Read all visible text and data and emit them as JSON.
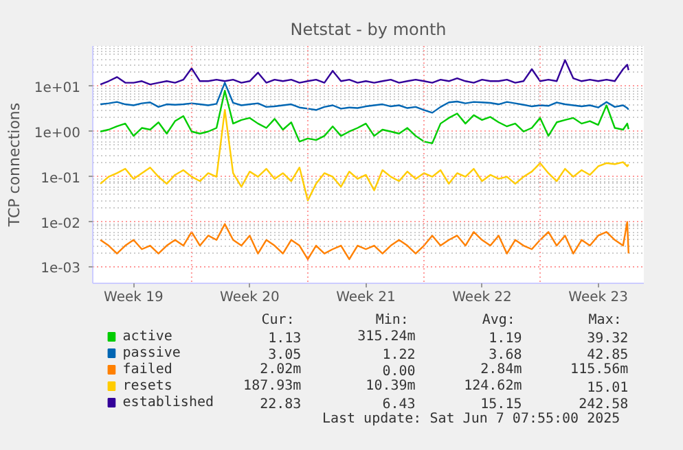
{
  "chart_data": {
    "type": "line",
    "title": "Netstat - by month",
    "ylabel": "TCP connections",
    "log": true,
    "grid": true,
    "legend": "bottom",
    "xlim": [
      "2025-05-06T01:00",
      "2025-06-08T06:00"
    ],
    "ylim": [
      0.00044,
      78
    ],
    "yticks": [
      {
        "value": 0.001,
        "label": "1e-03"
      },
      {
        "value": 0.01,
        "label": "1e-02"
      },
      {
        "value": 0.1,
        "label": "1e-01"
      },
      {
        "value": 1,
        "label": "1e+00"
      },
      {
        "value": 10,
        "label": "1e+01"
      }
    ],
    "xticks": [
      {
        "value": "2025-05-08T12:00",
        "label": "Week 19"
      },
      {
        "value": "2025-05-12T00:00",
        "label": null
      },
      {
        "value": "2025-05-15T12:00",
        "label": "Week 20"
      },
      {
        "value": "2025-05-19T00:00",
        "label": null
      },
      {
        "value": "2025-05-22T12:00",
        "label": "Week 21"
      },
      {
        "value": "2025-05-26T00:00",
        "label": null
      },
      {
        "value": "2025-05-29T12:00",
        "label": "Week 22"
      },
      {
        "value": "2025-06-02T00:00",
        "label": null
      },
      {
        "value": "2025-06-05T12:00",
        "label": "Week 23"
      }
    ],
    "x": [
      "2025-05-06T12:00",
      "2025-05-07T00:00",
      "2025-05-07T12:00",
      "2025-05-08T00:00",
      "2025-05-08T12:00",
      "2025-05-09T00:00",
      "2025-05-09T12:00",
      "2025-05-10T00:00",
      "2025-05-10T12:00",
      "2025-05-11T00:00",
      "2025-05-11T12:00",
      "2025-05-12T00:00",
      "2025-05-12T12:00",
      "2025-05-13T00:00",
      "2025-05-13T12:00",
      "2025-05-14T00:00",
      "2025-05-14T12:00",
      "2025-05-15T00:00",
      "2025-05-15T12:00",
      "2025-05-16T00:00",
      "2025-05-16T12:00",
      "2025-05-17T00:00",
      "2025-05-17T12:00",
      "2025-05-18T00:00",
      "2025-05-18T12:00",
      "2025-05-19T00:00",
      "2025-05-19T12:00",
      "2025-05-20T00:00",
      "2025-05-20T12:00",
      "2025-05-21T00:00",
      "2025-05-21T12:00",
      "2025-05-22T00:00",
      "2025-05-22T12:00",
      "2025-05-23T00:00",
      "2025-05-23T12:00",
      "2025-05-24T00:00",
      "2025-05-24T12:00",
      "2025-05-25T00:00",
      "2025-05-25T12:00",
      "2025-05-26T00:00",
      "2025-05-26T12:00",
      "2025-05-27T00:00",
      "2025-05-27T12:00",
      "2025-05-28T00:00",
      "2025-05-28T12:00",
      "2025-05-29T00:00",
      "2025-05-29T12:00",
      "2025-05-30T00:00",
      "2025-05-30T12:00",
      "2025-05-31T00:00",
      "2025-05-31T12:00",
      "2025-06-01T00:00",
      "2025-06-01T12:00",
      "2025-06-02T00:00",
      "2025-06-02T12:00",
      "2025-06-03T00:00",
      "2025-06-03T12:00",
      "2025-06-04T00:00",
      "2025-06-04T12:00",
      "2025-06-05T00:00",
      "2025-06-05T12:00",
      "2025-06-06T00:00",
      "2025-06-06T12:00",
      "2025-06-07T00:00",
      "2025-06-07T06:00",
      "2025-06-07T07:55"
    ],
    "series": [
      {
        "name": "active",
        "color": "#00cc00",
        "values": [
          1,
          1.1,
          1.3,
          1.5,
          0.8,
          1.2,
          1.1,
          1.6,
          0.9,
          1.7,
          2.2,
          1,
          0.9,
          1,
          1.2,
          8,
          1.5,
          1.8,
          2,
          1.5,
          1.2,
          1.9,
          1.1,
          1.6,
          0.6,
          0.7,
          0.65,
          0.8,
          1.3,
          0.8,
          1,
          1.2,
          1.5,
          0.8,
          1.1,
          1,
          0.9,
          1.2,
          0.8,
          0.6,
          0.55,
          1.5,
          2,
          2.5,
          1.5,
          2.3,
          1.8,
          2.1,
          1.6,
          1.3,
          1.5,
          1,
          1.2,
          2,
          0.8,
          1.6,
          1.8,
          2,
          1.5,
          1.7,
          1.4,
          3.8,
          1.2,
          1.1,
          1.5,
          1.13
        ]
      },
      {
        "name": "passive",
        "color": "#0066b3",
        "values": [
          4,
          4.2,
          4.5,
          4,
          3.8,
          4.2,
          4.4,
          3.5,
          4,
          3.9,
          4,
          4.2,
          4,
          3.8,
          4.1,
          12,
          4.3,
          3.8,
          4,
          4.2,
          3.5,
          3.6,
          3.8,
          4,
          3.4,
          3.2,
          3,
          3.5,
          3.8,
          3.2,
          3.4,
          3.3,
          3.6,
          3.8,
          4,
          3.6,
          3.8,
          3.3,
          3.5,
          3,
          2.6,
          3.5,
          4.4,
          4.6,
          4.2,
          4.5,
          4.4,
          4.3,
          4,
          4.5,
          4.2,
          3.9,
          3.6,
          3.8,
          3.7,
          4.4,
          4,
          3.8,
          3.6,
          3.8,
          3.4,
          4.5,
          3.5,
          3.8,
          3.3,
          3.05
        ]
      },
      {
        "name": "failed",
        "color": "#ff8000",
        "values": [
          0.004,
          0.003,
          0.002,
          0.003,
          0.004,
          0.0025,
          0.003,
          0.002,
          0.003,
          0.004,
          0.003,
          0.006,
          0.003,
          0.005,
          0.004,
          0.009,
          0.004,
          0.003,
          0.005,
          0.002,
          0.004,
          0.003,
          0.002,
          0.004,
          0.003,
          0.0015,
          0.003,
          0.002,
          0.0025,
          0.003,
          0.0015,
          0.003,
          0.0025,
          0.003,
          0.002,
          0.003,
          0.004,
          0.003,
          0.002,
          0.003,
          0.005,
          0.003,
          0.004,
          0.005,
          0.003,
          0.006,
          0.004,
          0.003,
          0.005,
          0.002,
          0.004,
          0.003,
          0.0025,
          0.004,
          0.006,
          0.003,
          0.005,
          0.002,
          0.004,
          0.003,
          0.005,
          0.006,
          0.004,
          0.003,
          0.01,
          0.00202
        ]
      },
      {
        "name": "resets",
        "color": "#ffcc00",
        "values": [
          0.07,
          0.1,
          0.12,
          0.15,
          0.09,
          0.12,
          0.16,
          0.1,
          0.07,
          0.11,
          0.14,
          0.1,
          0.08,
          0.12,
          0.1,
          3,
          0.12,
          0.06,
          0.13,
          0.1,
          0.15,
          0.09,
          0.12,
          0.08,
          0.16,
          0.03,
          0.07,
          0.12,
          0.1,
          0.06,
          0.13,
          0.09,
          0.11,
          0.05,
          0.14,
          0.1,
          0.08,
          0.13,
          0.09,
          0.12,
          0.1,
          0.14,
          0.07,
          0.12,
          0.1,
          0.15,
          0.08,
          0.11,
          0.09,
          0.1,
          0.07,
          0.1,
          0.13,
          0.2,
          0.12,
          0.08,
          0.15,
          0.1,
          0.14,
          0.11,
          0.17,
          0.2,
          0.19,
          0.21,
          0.17,
          0.188
        ]
      },
      {
        "name": "established",
        "color": "#330099",
        "values": [
          11,
          13,
          16,
          12,
          12,
          13,
          11,
          12,
          13,
          12,
          14,
          25,
          13,
          13,
          14,
          13,
          14,
          12,
          13,
          20,
          12,
          14,
          13,
          14,
          12,
          13,
          14,
          12,
          22,
          13,
          14,
          12,
          13,
          12,
          13,
          14,
          12,
          13,
          14,
          13,
          12,
          14,
          13,
          15,
          13,
          12,
          14,
          13,
          13,
          14,
          12,
          13,
          24,
          13,
          14,
          13,
          38,
          15,
          13,
          14,
          13,
          14,
          13,
          24,
          30,
          22.83
        ]
      }
    ],
    "annotations": [
      "Cur:",
      "Min:",
      "Avg:",
      "Max:",
      "1.13",
      "315.24m",
      "1.19",
      "39.32",
      "3.05",
      "1.22",
      "3.68",
      "42.85",
      "2.02m",
      "0.00",
      "2.84m",
      "115.56m",
      "187.93m",
      "10.39m",
      "124.62m",
      "15.01",
      "22.83",
      "6.43",
      "15.15",
      "242.58",
      "Last update: Sat Jun  7 07:55:00 2025"
    ]
  }
}
